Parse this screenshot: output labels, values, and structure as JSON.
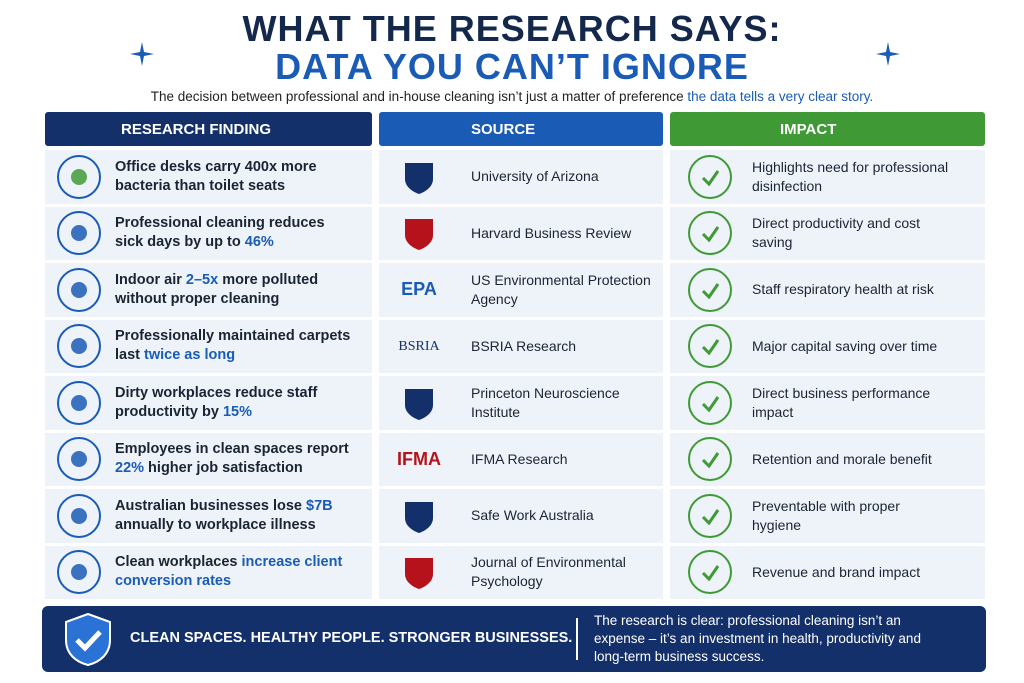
{
  "title": {
    "line1": "WHAT THE RESEARCH SAYS:",
    "line2": "DATA YOU CAN’T IGNORE"
  },
  "subtitle": {
    "text": "The decision between professional and in-house cleaning isn’t just a matter of preference",
    "highlight": "the data tells a very clear story."
  },
  "headers": [
    "RESEARCH FINDING",
    "SOURCE",
    "IMPACT"
  ],
  "rows": [
    {
      "finding": {
        "before": "Office desks carry 400x more bacteria than toilet seats"
      },
      "source": "University of Arizona",
      "impact": "Highlights need for professional disinfection"
    },
    {
      "finding": {
        "before": "Professional cleaning reduces sick days by up to ",
        "highlight": "46%"
      },
      "source": "Harvard Business Review",
      "impact": "Direct productivity and cost saving"
    },
    {
      "finding": {
        "before": "Indoor air ",
        "highlight": "2–5x",
        "after": " more polluted without proper cleaning"
      },
      "logo": "EPA",
      "source": "US Environmental Protection Agency",
      "impact": "Staff respiratory health at risk"
    },
    {
      "finding": {
        "before": "Professionally maintained carpets last ",
        "highlight": "twice as long"
      },
      "logo": "BSRIA",
      "source": "BSRIA Research",
      "impact": "Major capital saving over time"
    },
    {
      "finding": {
        "before": "Dirty workplaces reduce staff productivity by ",
        "highlight": "15%"
      },
      "source": "Princeton Neuroscience Institute",
      "impact": "Direct business performance impact"
    },
    {
      "finding": {
        "before": "Employees in clean spaces report ",
        "highlight": "22%",
        "after": " higher job satisfaction"
      },
      "logo": "IFMA",
      "source": "IFMA Research",
      "impact": "Retention and morale benefit"
    },
    {
      "finding": {
        "before": "Australian businesses lose ",
        "highlight": "$7B",
        "after": " annually to workplace illness"
      },
      "source": "Safe Work Australia",
      "impact": "Preventable with proper hygiene"
    },
    {
      "finding": {
        "before": "Clean workplaces ",
        "highlight": "increase client conversion rates"
      },
      "source": "Journal of Environmental Psychology",
      "impact": "Revenue and brand impact"
    }
  ],
  "footer": {
    "slogan": "CLEAN SPACES. HEALTHY PEOPLE. STRONGER BUSINESSES.",
    "text": "The research is clear: professional cleaning isn’t an expense – it’s an investment in health, productivity and long-term business success."
  }
}
